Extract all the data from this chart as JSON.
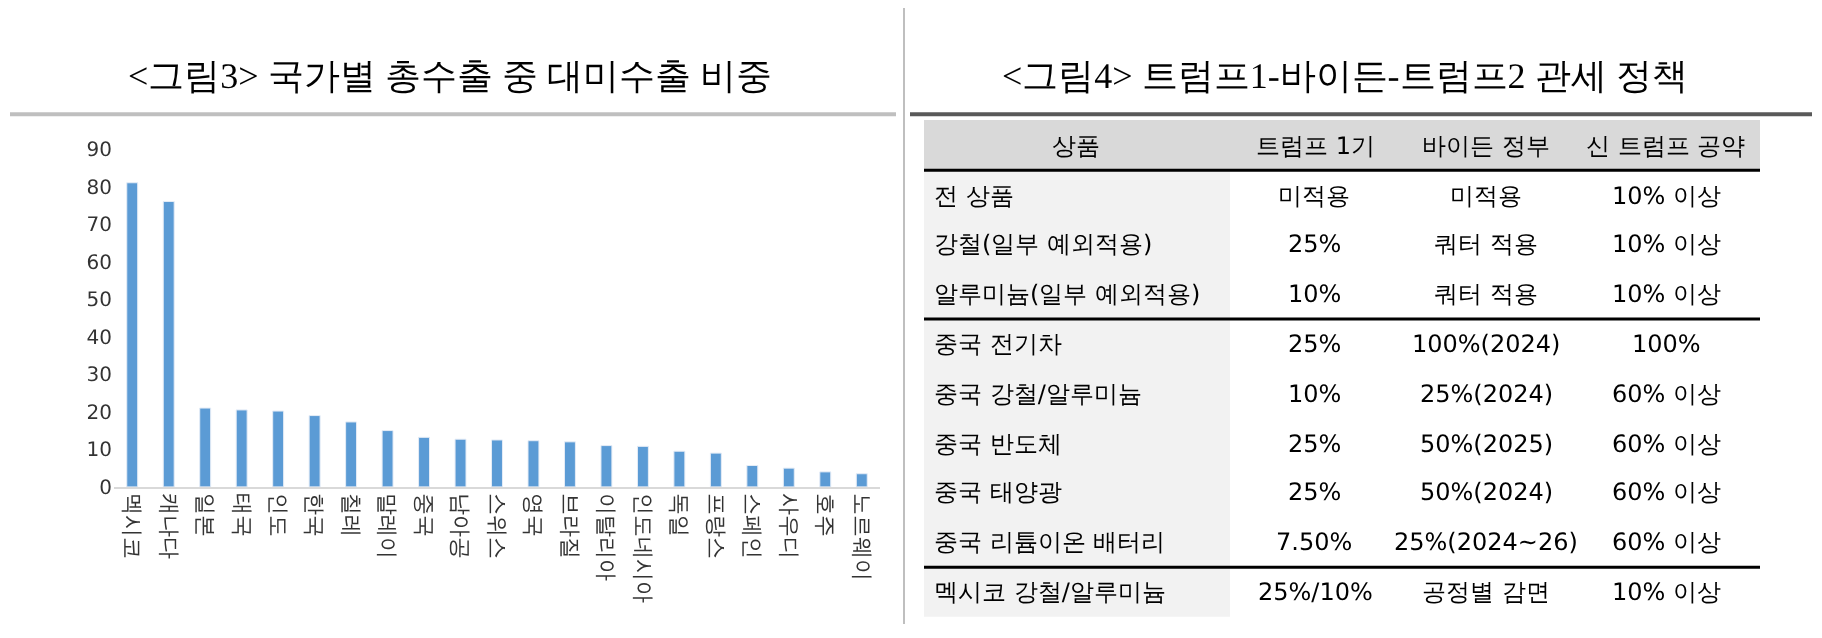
{
  "chart_data": [
    {
      "type": "bar",
      "title": "<그림3> 국가별 총수출 중 대미수출 비중",
      "categories": [
        "멕시코",
        "캐나다",
        "일본",
        "태국",
        "인도",
        "한국",
        "칠레",
        "말레이",
        "중국",
        "남아공",
        "스위스",
        "영국",
        "브라질",
        "이탈리아",
        "인도네시아",
        "독일",
        "프랑스",
        "스페인",
        "사우디",
        "호주",
        "노르웨이"
      ],
      "values": [
        81,
        76,
        21,
        20.5,
        20.2,
        19,
        17.3,
        15,
        13.2,
        12.7,
        12.5,
        12.3,
        12,
        11,
        10.8,
        9.5,
        9,
        5.7,
        5,
        4,
        3.5
      ],
      "color": "#5b9bd5",
      "ylim": [
        0,
        90
      ],
      "yticks": [
        0,
        10,
        20,
        30,
        40,
        50,
        60,
        70,
        80,
        90
      ]
    },
    {
      "type": "other",
      "title": "<그림4> 트럼프1-바이든-트럼프2 관세 정책",
      "categories": [
        "상품",
        "트럼프 1기",
        "바이든 정부",
        "신 트럼프 공약"
      ],
      "y_categories": [
        "전 상품",
        "강철(일부 예외적용)",
        "알루미늄(일부 예외적용)",
        "중국 전기차",
        "중국 강철/알루미늄",
        "중국 반도체",
        "중국 태양광",
        "중국 리튬이온 배터리",
        "멕시코 강철/알루미늄"
      ],
      "cell_labels": [
        [
          "미적용",
          "미적용",
          "10% 이상"
        ],
        [
          "25%",
          "쿼터 적용",
          "10% 이상"
        ],
        [
          "10%",
          "쿼터 적용",
          "10% 이상"
        ],
        [
          "25%",
          "100%(2024)",
          "100%"
        ],
        [
          "10%",
          "25%(2024)",
          "60% 이상"
        ],
        [
          "25%",
          "50%(2025)",
          "60% 이상"
        ],
        [
          "25%",
          "50%(2024)",
          "60% 이상"
        ],
        [
          "7.50%",
          "25%(2024~26)",
          "60% 이상"
        ],
        [
          "25%/10%",
          "공정별 감면",
          "10% 이상"
        ]
      ]
    }
  ]
}
